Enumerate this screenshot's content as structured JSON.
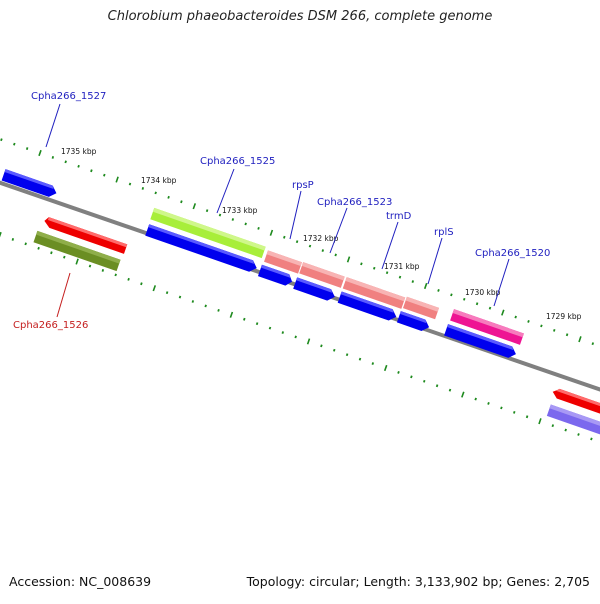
{
  "title": "Chlorobium phaeobacteroides DSM 266, complete genome",
  "footer": {
    "accession": "Accession: NC_008639",
    "summary": "Topology: circular; Length: 3,133,902 bp; Genes: 2,705"
  },
  "ticks": [
    {
      "label": "1735 kbp"
    },
    {
      "label": "1734 kbp"
    },
    {
      "label": "1733 kbp"
    },
    {
      "label": "1732 kbp"
    },
    {
      "label": "1731 kbp"
    },
    {
      "label": "1730 kbp"
    },
    {
      "label": "1729 kbp"
    }
  ],
  "gene_labels": [
    {
      "name": "Cpha266_1527"
    },
    {
      "name": "Cpha266_1525"
    },
    {
      "name": "rpsP"
    },
    {
      "name": "Cpha266_1523"
    },
    {
      "name": "trmD"
    },
    {
      "name": "rplS"
    },
    {
      "name": "Cpha266_1520"
    },
    {
      "name": "Cpha266_1526"
    }
  ],
  "colors": {
    "backbone": "#808080",
    "tick": "#1e8a1e",
    "cds_blue": "#0000ee",
    "gene_red": "#ee0000",
    "gene_olive": "#6b8e23",
    "gene_lime": "#a8ee3a",
    "gene_salmon": "#f08080",
    "gene_pink": "#ee1493",
    "gene_purple": "#7b68ee",
    "label_blue": "#1f1fbf",
    "label_red": "#c41e1e"
  }
}
